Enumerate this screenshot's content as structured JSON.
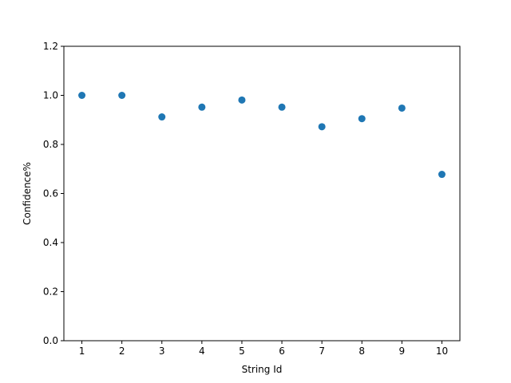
{
  "chart_data": {
    "type": "scatter",
    "xlabel": "String Id",
    "ylabel": "Confidence%",
    "x": [
      1,
      2,
      3,
      4,
      5,
      6,
      7,
      8,
      9,
      10
    ],
    "y": [
      1.0,
      1.0,
      0.912,
      0.952,
      0.981,
      0.952,
      0.872,
      0.905,
      0.948,
      0.678
    ],
    "xlim": [
      0.55,
      10.45
    ],
    "ylim": [
      0.0,
      1.2
    ],
    "xticks": [
      1,
      2,
      3,
      4,
      5,
      6,
      7,
      8,
      9,
      10
    ],
    "yticks": [
      0.0,
      0.2,
      0.4,
      0.6,
      0.8,
      1.0,
      1.2
    ],
    "ytick_labels": [
      "0.0",
      "0.2",
      "0.4",
      "0.6",
      "0.8",
      "1.0",
      "1.2"
    ],
    "grid": false,
    "marker_color": "#1f77b4"
  }
}
